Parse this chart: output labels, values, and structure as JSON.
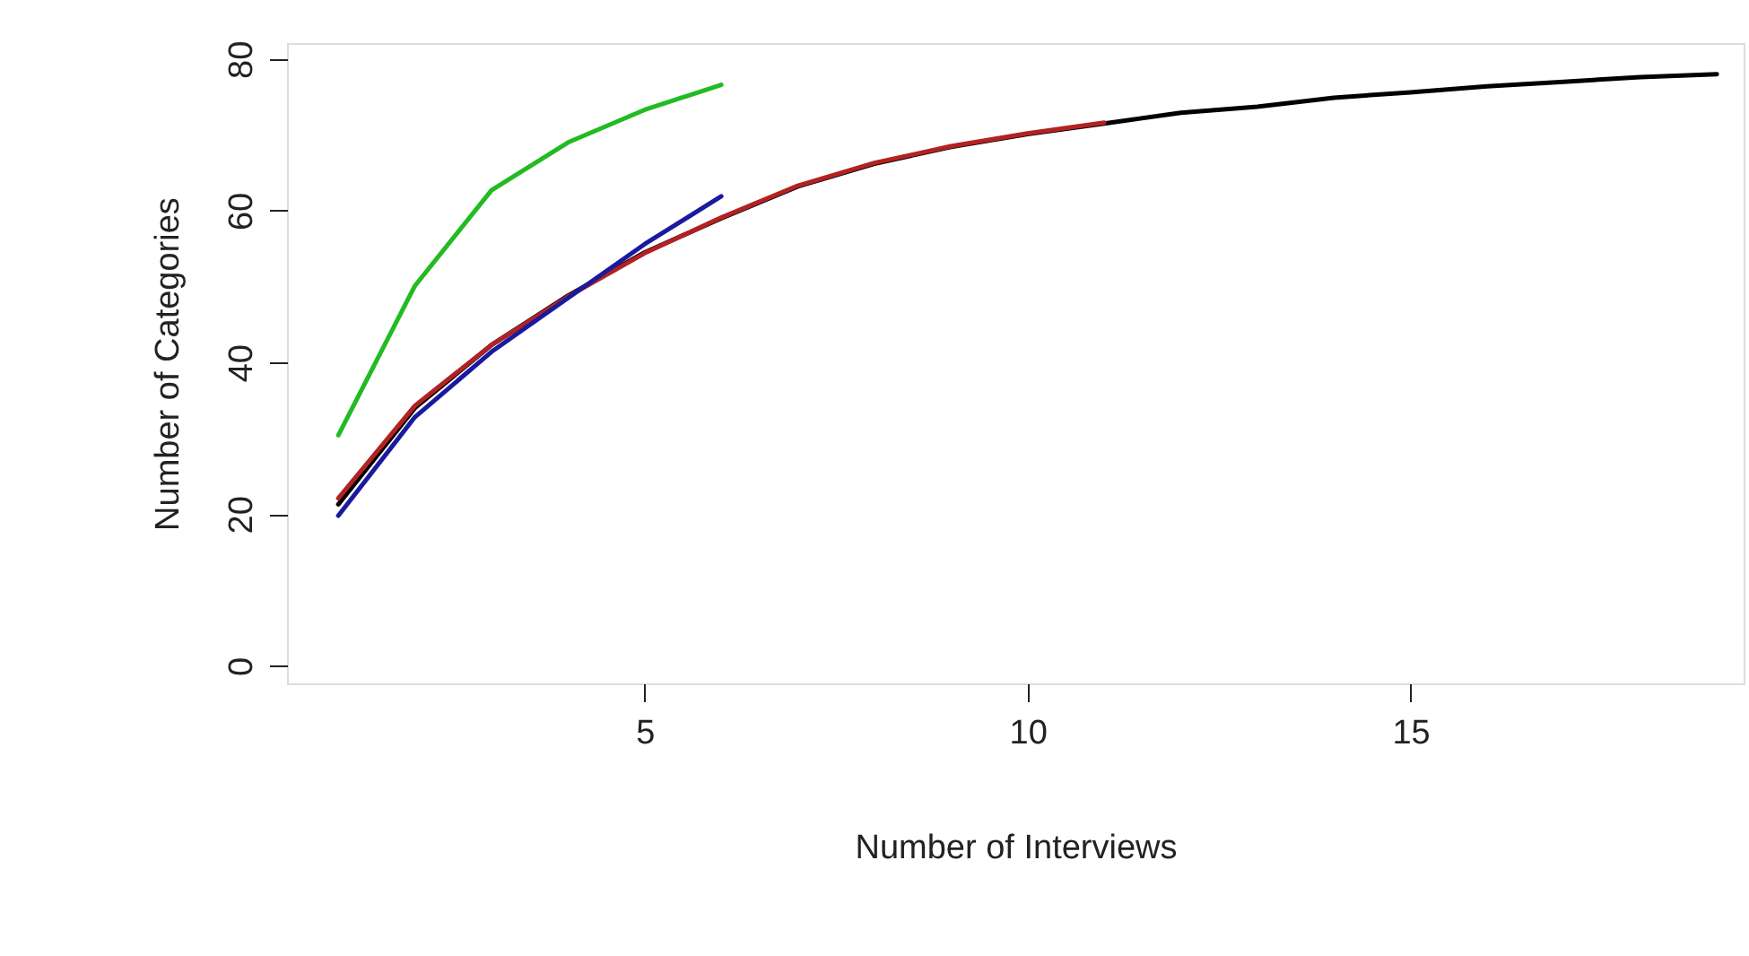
{
  "chart_data": {
    "type": "line",
    "xlabel": "Number of Interviews",
    "ylabel": "Number of Categories",
    "xlim": [
      0.33,
      19.35
    ],
    "ylim": [
      -2.3,
      82.1
    ],
    "xticks": [
      5,
      10,
      15
    ],
    "yticks": [
      0,
      20,
      40,
      60,
      80
    ],
    "grid": false,
    "line_style": "solid",
    "marker": "none",
    "series": [
      {
        "color": "#000000",
        "x": [
          1,
          2,
          3,
          4,
          5,
          6,
          7,
          8,
          9,
          10,
          11,
          12,
          13,
          14,
          15,
          16,
          17,
          18,
          19
        ],
        "values": [
          21.3,
          34,
          42.3,
          48.8,
          54.5,
          59,
          63.2,
          66.2,
          68.4,
          70.1,
          71.5,
          72.9,
          73.7,
          74.9,
          75.6,
          76.4,
          77,
          77.6,
          78
        ]
      },
      {
        "color": "#b22222",
        "x": [
          1,
          2,
          3,
          4,
          5,
          6,
          7,
          8,
          9,
          10,
          11
        ],
        "values": [
          22.1,
          34.3,
          42.3,
          48.7,
          54.4,
          59.1,
          63.3,
          66.3,
          68.5,
          70.2,
          71.6
        ]
      },
      {
        "color": "#1a1aa0",
        "x": [
          1,
          2,
          3,
          4,
          5,
          6
        ],
        "values": [
          19.8,
          32.8,
          41.4,
          48.5,
          55.6,
          61.9
        ]
      },
      {
        "color": "#22bb22",
        "x": [
          1,
          2,
          3,
          4,
          5,
          6
        ],
        "values": [
          30.4,
          50.1,
          62.7,
          69,
          73.3,
          76.6
        ]
      }
    ]
  }
}
